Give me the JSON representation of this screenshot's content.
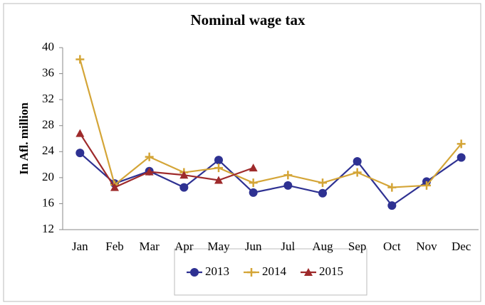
{
  "chart_data": {
    "type": "line",
    "title": "Nominal wage tax",
    "y_label": "In Afl. million",
    "categories": [
      "Jan",
      "Feb",
      "Mar",
      "Apr",
      "May",
      "Jun",
      "Jul",
      "Aug",
      "Sep",
      "Oct",
      "Nov",
      "Dec"
    ],
    "series": [
      {
        "name": "2013",
        "color": "#2e3192",
        "marker": "circle",
        "values": [
          23.8,
          19.1,
          21.0,
          18.5,
          22.7,
          17.7,
          18.8,
          17.6,
          22.5,
          15.7,
          19.4,
          23.1
        ]
      },
      {
        "name": "2014",
        "color": "#d4a537",
        "marker": "plus",
        "values": [
          38.2,
          18.9,
          23.2,
          20.8,
          21.5,
          19.2,
          20.4,
          19.2,
          20.8,
          18.5,
          18.8,
          25.2
        ]
      },
      {
        "name": "2015",
        "color": "#9e2a2b",
        "marker": "triangle",
        "values": [
          26.8,
          18.5,
          20.9,
          20.4,
          19.6,
          21.5,
          null,
          null,
          null,
          null,
          null,
          null
        ]
      }
    ],
    "ylim": [
      12,
      40
    ],
    "yticks": [
      12,
      16,
      20,
      24,
      28,
      32,
      36,
      40
    ],
    "grid": false,
    "legend": "bottom"
  }
}
